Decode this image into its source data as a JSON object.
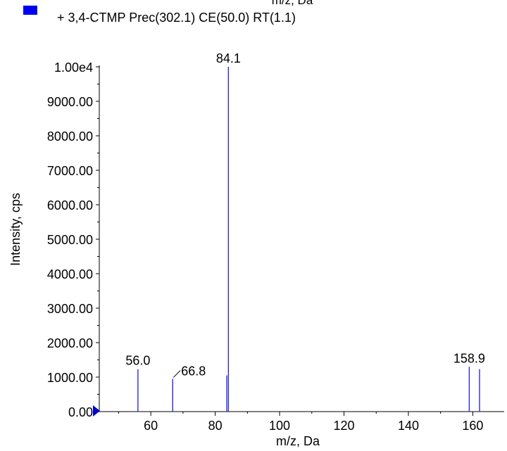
{
  "header": {
    "cut_text": "m/z, Da",
    "legend_label": "+ 3,4-CTMP Prec(302.1) CE(50.0) RT(1.1)",
    "legend_color": "#0000ee"
  },
  "colors": {
    "spectrum": "#2a2ae0",
    "axis": "#000000",
    "marker": "#0000cc"
  },
  "chart_data": {
    "type": "bar",
    "title": "",
    "xlabel": "m/z, Da",
    "ylabel": "Intensity, cps",
    "xlim": [
      44,
      168
    ],
    "ylim": [
      0,
      10000
    ],
    "xticks": [
      "60",
      "80",
      "100",
      "120",
      "140",
      "160"
    ],
    "yticks": [
      "0.00",
      "1000.00",
      "2000.00",
      "3000.00",
      "4000.00",
      "5000.00",
      "6000.00",
      "7000.00",
      "8000.00",
      "9000.00",
      "1.00e4"
    ],
    "series": [
      {
        "peaks": [
          {
            "x": 56.0,
            "y": 1230,
            "label": "56.0"
          },
          {
            "x": 66.8,
            "y": 950,
            "label": "66.8"
          },
          {
            "x": 83.6,
            "y": 1050,
            "label": ""
          },
          {
            "x": 84.1,
            "y": 10000,
            "label": "84.1"
          },
          {
            "x": 158.9,
            "y": 1300,
            "label": "158.9"
          },
          {
            "x": 162.1,
            "y": 1230,
            "label": ""
          }
        ]
      }
    ]
  }
}
